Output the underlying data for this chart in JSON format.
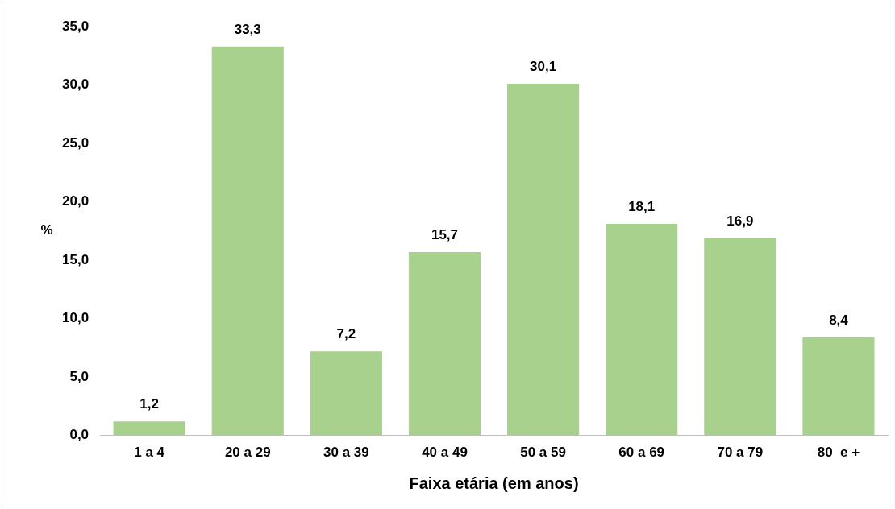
{
  "chart_data": {
    "type": "bar",
    "xlabel": "Faixa etária (em anos)",
    "ylabel": "%",
    "categories": [
      "1 a 4",
      "20 a 29",
      "30 a 39",
      "40 a 49",
      "50 a 59",
      "60 a 69",
      "70 a 79",
      "80  e +"
    ],
    "values": [
      1.2,
      33.3,
      7.2,
      15.7,
      30.1,
      18.1,
      16.9,
      8.4
    ],
    "value_labels": [
      "1,2",
      "33,3",
      "7,2",
      "15,7",
      "30,1",
      "18,1",
      "16,9",
      "8,4"
    ],
    "color": "#a9d18e",
    "ylim": [
      0,
      35
    ],
    "yticks": [
      {
        "value": 0,
        "label": "0,0"
      },
      {
        "value": 5,
        "label": "5,0"
      },
      {
        "value": 10,
        "label": "10,0"
      },
      {
        "value": 15,
        "label": "15,0"
      },
      {
        "value": 20,
        "label": "20,0"
      },
      {
        "value": 25,
        "label": "25,0"
      },
      {
        "value": 30,
        "label": "30,0"
      },
      {
        "value": 35,
        "label": "35,0"
      }
    ],
    "grid": false,
    "legend": false
  }
}
